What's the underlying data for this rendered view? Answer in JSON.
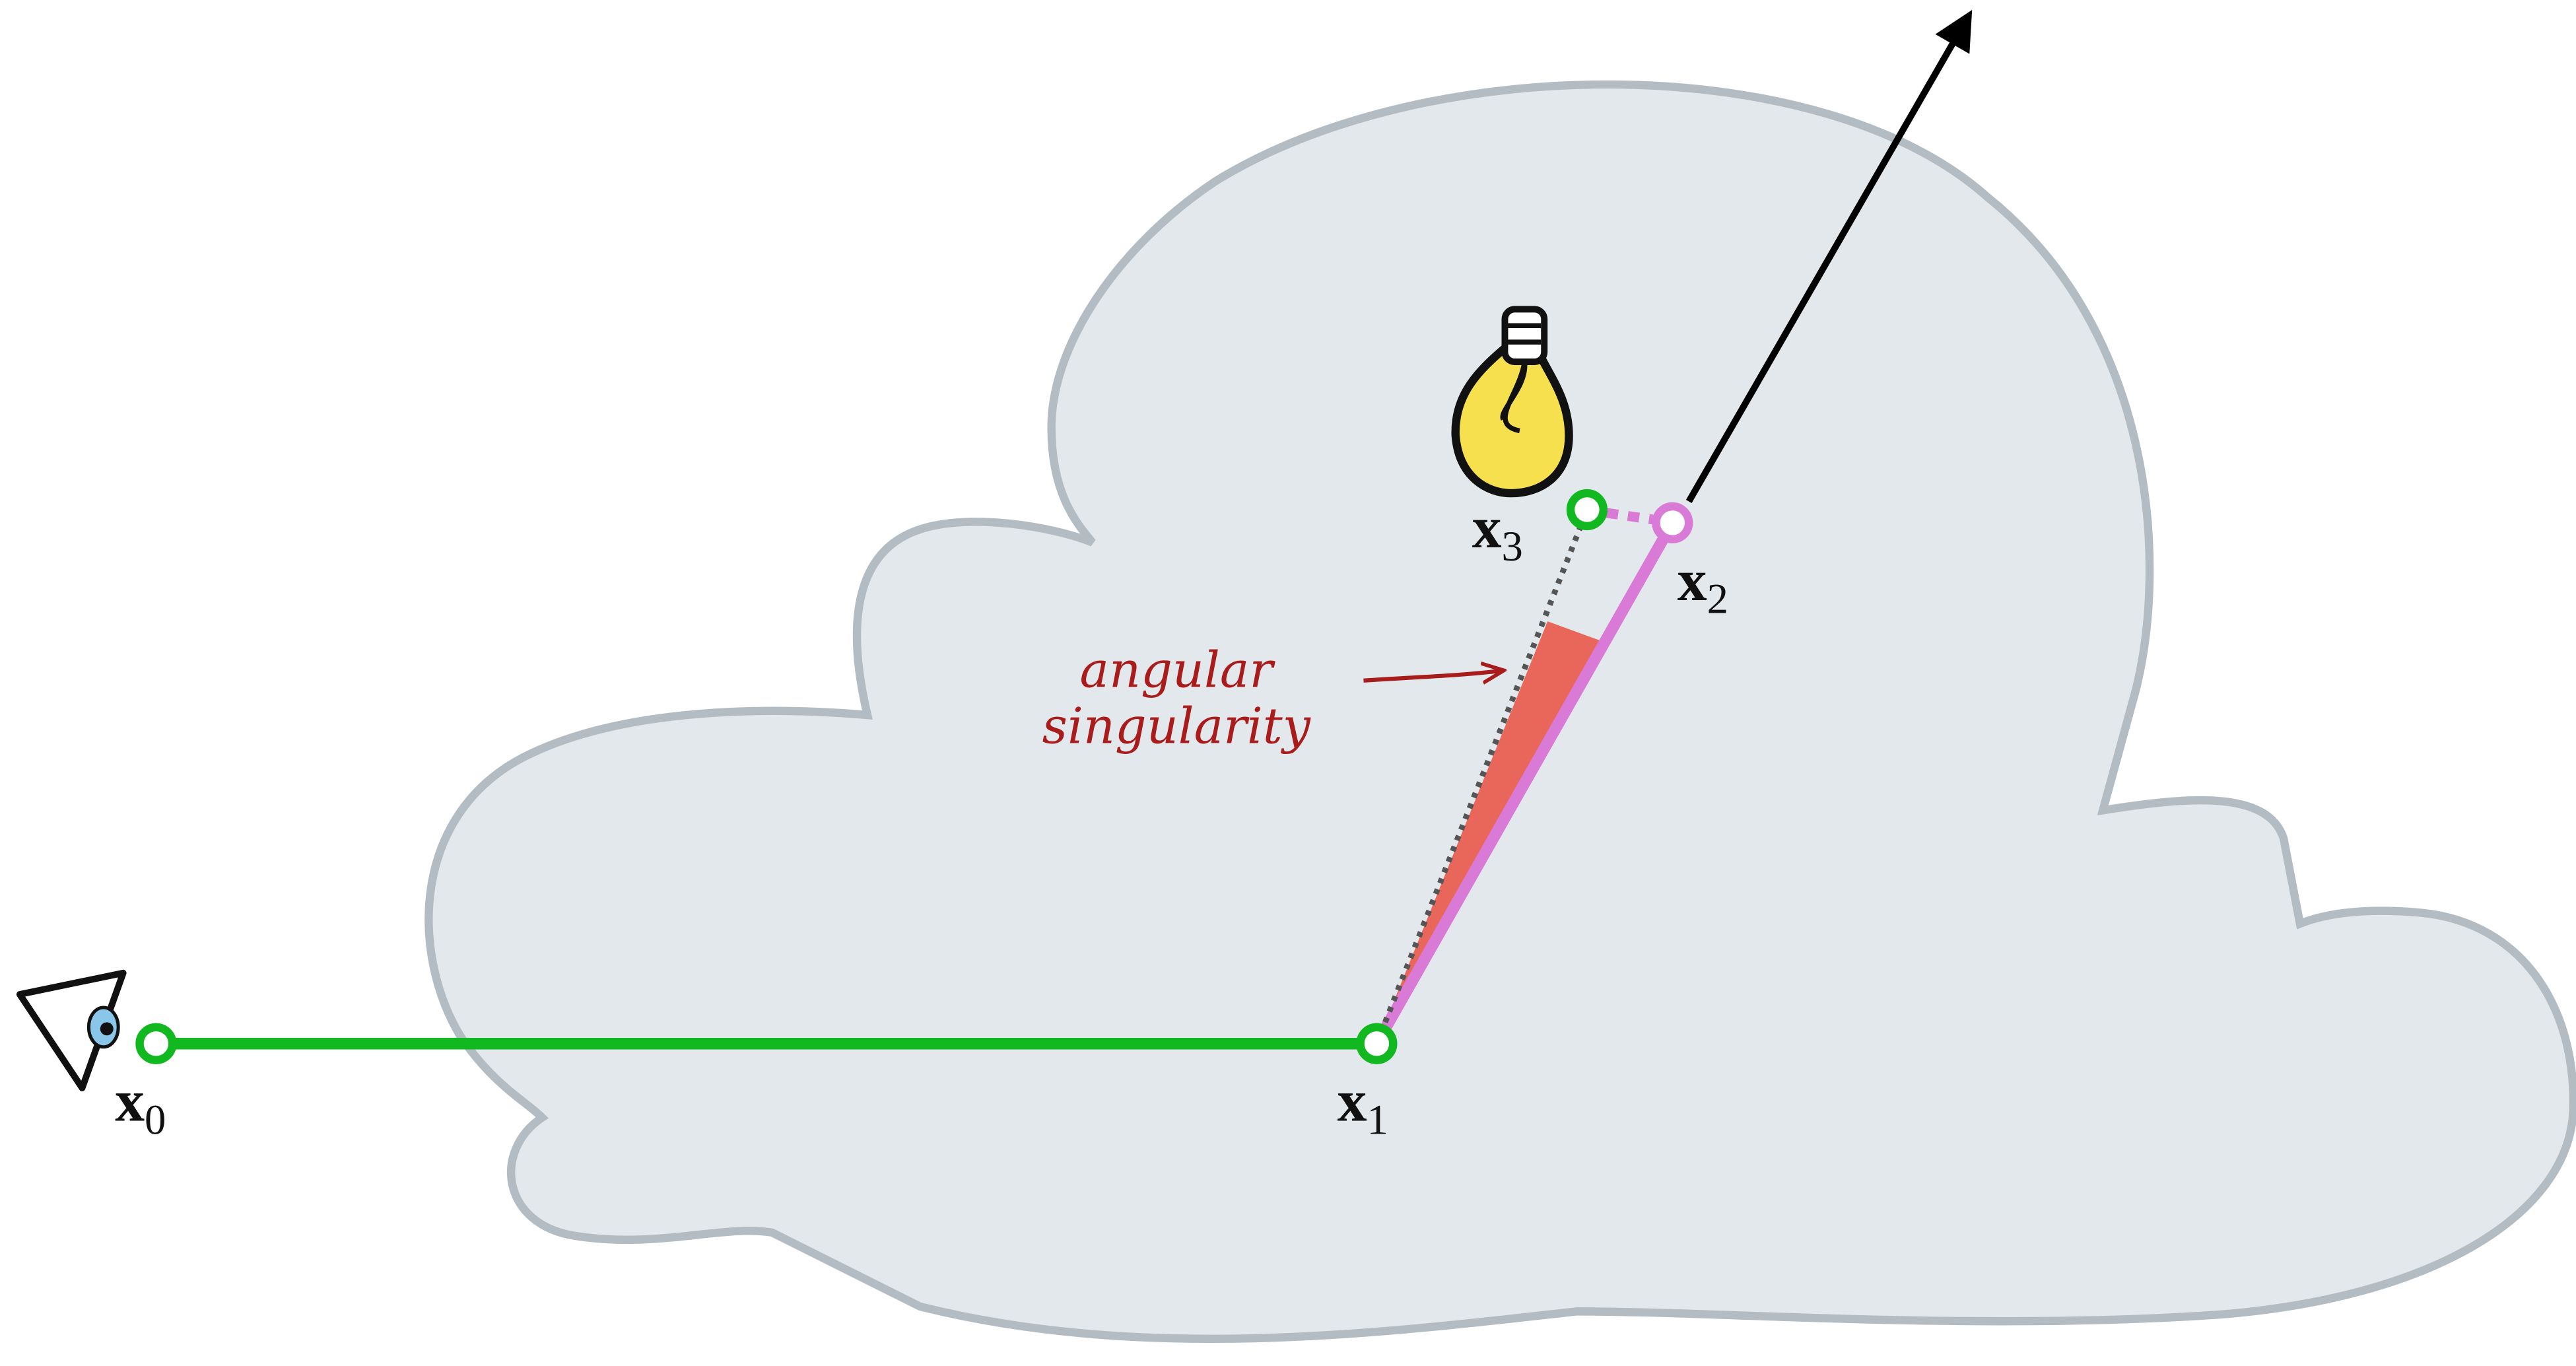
{
  "points": [
    {
      "label": "x",
      "subscript": "0"
    },
    {
      "label": "x",
      "subscript": "1"
    },
    {
      "label": "x",
      "subscript": "2"
    },
    {
      "label": "x",
      "subscript": "3"
    }
  ],
  "annotation": [
    "angular",
    "singularity"
  ]
}
